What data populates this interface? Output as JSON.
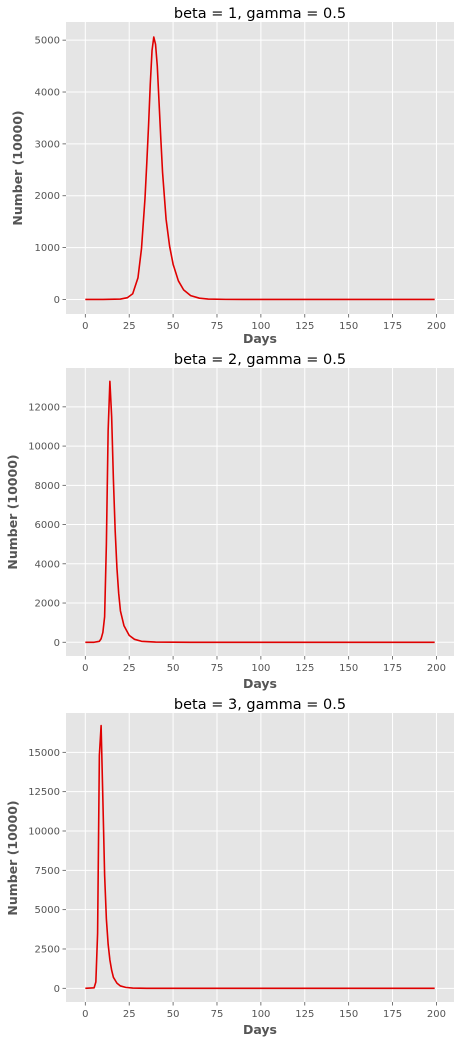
{
  "chart_data": [
    {
      "type": "line",
      "title": "beta = 1, gamma = 0.5",
      "xlabel": "Days",
      "ylabel": "Number (10000)",
      "xlim": [
        -11,
        210
      ],
      "ylim": [
        -280,
        5350
      ],
      "xticks": [
        0,
        25,
        50,
        75,
        100,
        125,
        150,
        175,
        200
      ],
      "yticks": [
        0,
        1000,
        2000,
        3000,
        4000,
        5000
      ],
      "grid": true,
      "color": "#e00000",
      "x": [
        0,
        10,
        20,
        24,
        27,
        30,
        32,
        34,
        35,
        36,
        37,
        38,
        39,
        40,
        41,
        42,
        43,
        44,
        46,
        48,
        50,
        53,
        56,
        60,
        65,
        70,
        80,
        90,
        100,
        120,
        150,
        199
      ],
      "y": [
        0,
        0,
        8,
        35,
        110,
        420,
        980,
        1950,
        2620,
        3340,
        4150,
        4800,
        5060,
        4920,
        4500,
        3800,
        3100,
        2450,
        1550,
        1030,
        680,
        360,
        185,
        75,
        25,
        8,
        2,
        0,
        0,
        0,
        0,
        0
      ]
    },
    {
      "type": "line",
      "title": "beta = 2, gamma = 0.5",
      "xlabel": "Days",
      "ylabel": "Number (10000)",
      "xlim": [
        -11,
        210
      ],
      "ylim": [
        -700,
        13980
      ],
      "xticks": [
        0,
        25,
        50,
        75,
        100,
        125,
        150,
        175,
        200
      ],
      "yticks": [
        0,
        2000,
        4000,
        6000,
        8000,
        10000,
        12000
      ],
      "grid": true,
      "color": "#e00000",
      "x": [
        0,
        5,
        8,
        9,
        10,
        11,
        12,
        13,
        14,
        15,
        16,
        17,
        18,
        19,
        20,
        22,
        25,
        28,
        32,
        40,
        60,
        199
      ],
      "y": [
        0,
        0,
        50,
        180,
        500,
        1300,
        5000,
        10800,
        13300,
        11500,
        8300,
        5700,
        3800,
        2500,
        1600,
        850,
        350,
        150,
        50,
        10,
        0,
        0
      ]
    },
    {
      "type": "line",
      "title": "beta = 3, gamma = 0.5",
      "xlabel": "Days",
      "ylabel": "Number (10000)",
      "xlim": [
        -11,
        210
      ],
      "ylim": [
        -870,
        17500
      ],
      "xticks": [
        0,
        25,
        50,
        75,
        100,
        125,
        150,
        175,
        200
      ],
      "yticks": [
        0,
        2500,
        5000,
        7500,
        10000,
        12500,
        15000
      ],
      "grid": true,
      "color": "#e00000",
      "x": [
        0,
        5,
        6,
        7,
        8,
        9,
        10,
        11,
        12,
        13,
        14,
        15,
        16,
        18,
        20,
        23,
        27,
        35,
        60,
        199
      ],
      "y": [
        0,
        30,
        400,
        3500,
        14800,
        16700,
        12000,
        7200,
        4400,
        2800,
        1800,
        1150,
        700,
        330,
        150,
        60,
        15,
        2,
        0,
        0
      ]
    }
  ]
}
